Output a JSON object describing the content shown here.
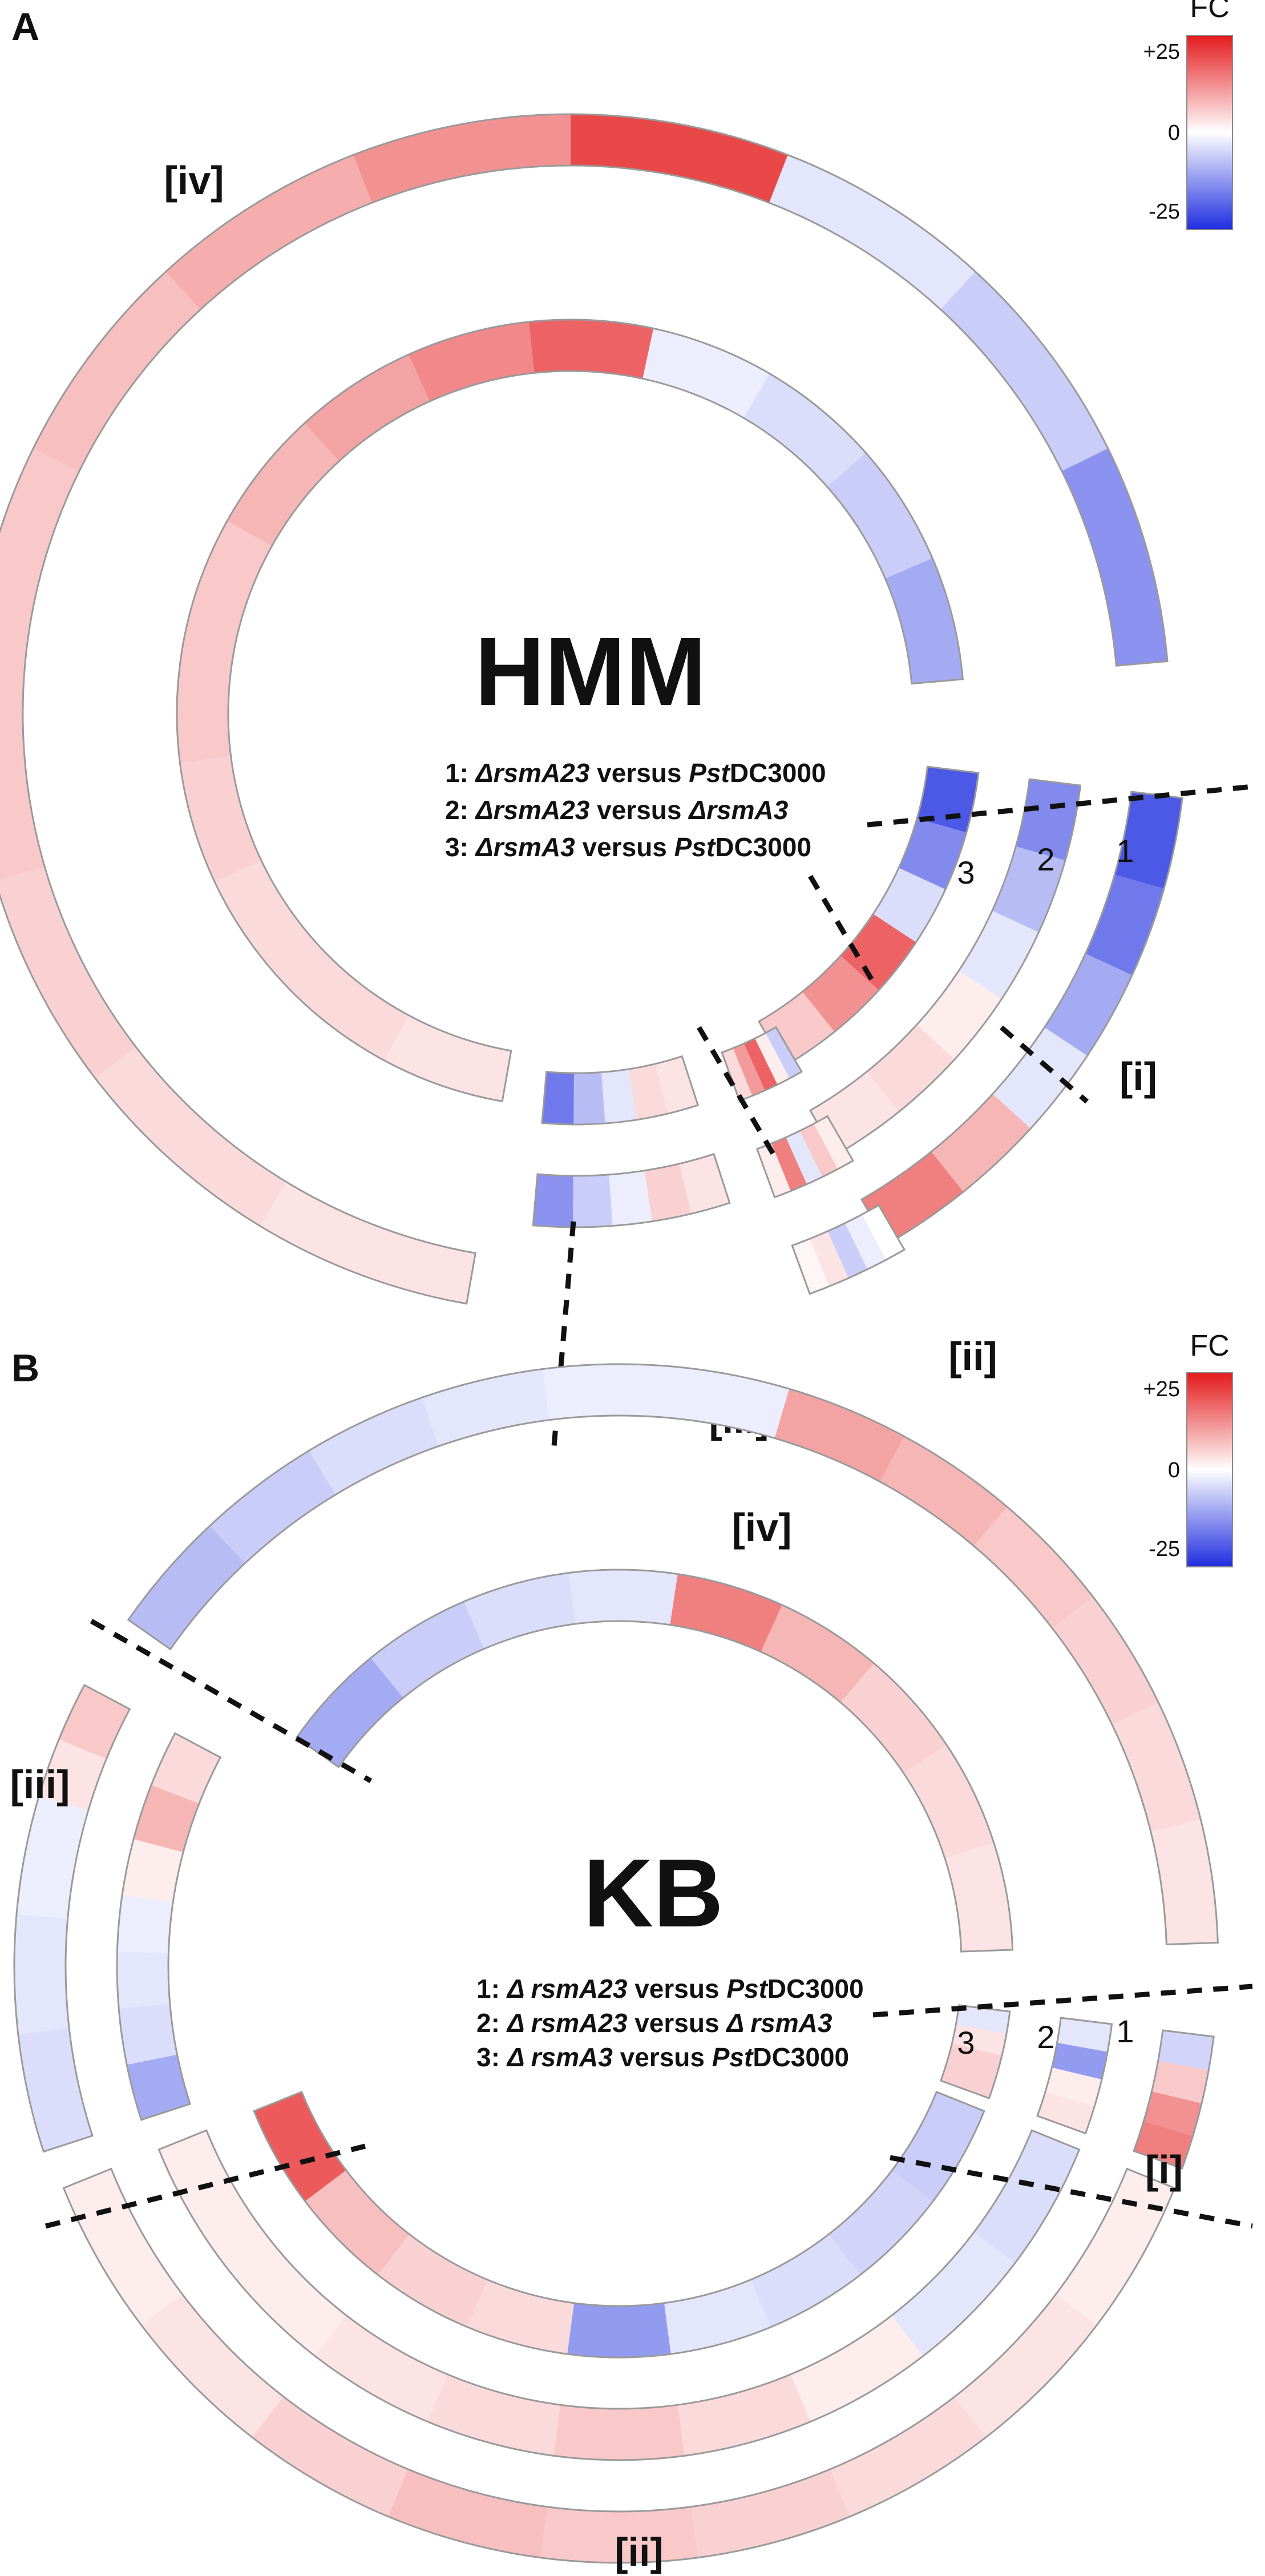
{
  "colors": {
    "high": "#e41a1c",
    "mid": "#ffffff",
    "low": "#1f2ee0"
  },
  "colorbar": {
    "title": "FC",
    "max_label": "+25",
    "mid_label": "0",
    "min_label": "-25",
    "max": 25,
    "min": -25
  },
  "panels": [
    {
      "letter": "A",
      "title": "HMM",
      "comparisons": [
        {
          "num": "1:",
          "a": "ΔrsmA23",
          "b": "versus",
          "c": "Pst",
          "d": "DC3000"
        },
        {
          "num": "2:",
          "a": "ΔrsmA23",
          "b": "versus",
          "c": "ΔrsmA3",
          "d": ""
        },
        {
          "num": "3:",
          "a": "ΔrsmA3",
          "b": "versus",
          "c": "Pst",
          "d": "DC3000"
        }
      ],
      "ring_numbers": [
        "3",
        "2",
        "1"
      ],
      "groups": [
        {
          "label": "[i]",
          "ring_fc": [
            [
              -20,
              -16,
              -10,
              -3,
              8,
              14
            ],
            [
              -14,
              -8,
              -3,
              2,
              4,
              3
            ],
            [
              -20,
              -14,
              -4,
              17,
              12,
              6
            ]
          ]
        },
        {
          "label": "[ii]",
          "ring_fc": [
            [
              0,
              -2,
              -6,
              3,
              1
            ],
            [
              2,
              6,
              -3,
              14,
              2
            ],
            [
              -6,
              2,
              17,
              11,
              4
            ]
          ]
        },
        {
          "label": "[iii]",
          "ring_fc": [
            [
              null,
              null,
              null,
              null,
              null
            ],
            [
              3,
              5,
              -2,
              -6,
              -13
            ],
            [
              3,
              4,
              -3,
              -8,
              -16
            ]
          ]
        },
        {
          "label": "[iv]",
          "ring_fc": [
            [
              3,
              4,
              5,
              6,
              6,
              7,
              9,
              12,
              20,
              -3,
              -6,
              -13
            ],
            [
              null,
              null,
              null,
              null,
              null,
              null,
              null,
              null,
              null,
              null,
              null,
              null
            ],
            [
              3,
              4,
              4,
              5,
              6,
              6,
              8,
              10,
              13,
              17,
              -2,
              -4,
              -6,
              -10
            ]
          ]
        }
      ]
    },
    {
      "letter": "B",
      "title": "KB",
      "comparisons": [
        {
          "num": "1:",
          "a": "Δ rsmA23",
          "b": "versus",
          "c": "Pst",
          "d": "DC3000"
        },
        {
          "num": "2:",
          "a": "Δ rsmA23",
          "b": "versus",
          "c": "Δ rsmA3",
          "d": ""
        },
        {
          "num": "3:",
          "a": "Δ rsmA3",
          "b": "versus",
          "c": "Pst",
          "d": "DC3000"
        }
      ],
      "ring_numbers": [
        "3",
        "2",
        "1"
      ],
      "groups": [
        {
          "label": "[i]",
          "ring_fc": [
            [
              -5,
              6,
              12,
              14
            ],
            [
              -3,
              -12,
              2,
              3
            ],
            [
              -3,
              3,
              5,
              5
            ]
          ]
        },
        {
          "label": "[ii]",
          "ring_fc": [
            [
              2,
              3,
              4,
              5,
              6,
              7,
              5,
              3,
              2
            ],
            [
              -4,
              -3,
              2,
              4,
              6,
              4,
              3,
              2,
              2
            ],
            [
              -6,
              -5,
              -4,
              -3,
              -12,
              4,
              5,
              7,
              18
            ]
          ]
        },
        {
          "label": "[iii]",
          "ring_fc": [
            [
              -4,
              -4,
              -3,
              -3,
              -2,
              -2,
              3,
              6
            ],
            [
              -10,
              -4,
              -3,
              -2,
              2,
              8,
              4
            ],
            [
              null,
              null,
              null,
              null
            ]
          ]
        },
        {
          "label": "[iv]",
          "ring_fc": [
            [
              -8,
              -6,
              -4,
              -3,
              -2,
              -2,
              10,
              8,
              6,
              5,
              4,
              3
            ],
            [
              null,
              null,
              null,
              null,
              null,
              null
            ],
            [
              -10,
              -6,
              -4,
              -3,
              14,
              8,
              5,
              4,
              3
            ]
          ]
        }
      ]
    }
  ]
}
